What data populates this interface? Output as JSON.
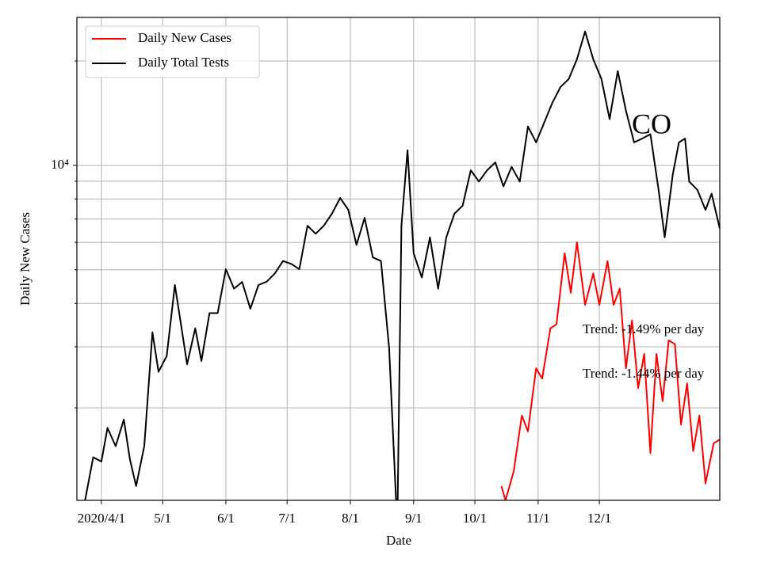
{
  "chart_data": {
    "type": "line",
    "xlabel": "Date",
    "ylabel": "Daily New Cases",
    "log_y": true,
    "grid": true,
    "legend": "upper left",
    "xlim": [
      "2020-03-20",
      "2021-01-29"
    ],
    "ylim": [
      1082,
      26700
    ],
    "xticks": [
      {
        "value": "2020-04-01",
        "label": "2020/4/1"
      },
      {
        "value": "2020-05-01",
        "label": "5/1"
      },
      {
        "value": "2020-06-01",
        "label": "6/1"
      },
      {
        "value": "2020-07-01",
        "label": "7/1"
      },
      {
        "value": "2020-08-01",
        "label": "8/1"
      },
      {
        "value": "2020-09-01",
        "label": "9/1"
      },
      {
        "value": "2020-10-01",
        "label": "10/1"
      },
      {
        "value": "2020-11-01",
        "label": "11/1"
      },
      {
        "value": "2020-12-01",
        "label": "12/1"
      }
    ],
    "yticks": [
      {
        "value": 10000,
        "label": "10⁴"
      }
    ],
    "yminor": [
      2000,
      3000,
      4000,
      5000,
      6000,
      7000,
      8000,
      9000,
      20000
    ],
    "annotations": [
      {
        "text": "CO"
      },
      {
        "text": "Trend: -1.49% per day"
      },
      {
        "text": "Trend: -1.44% per day"
      }
    ],
    "series": [
      {
        "name": "Daily New Cases",
        "color": "#ff0000",
        "x": [
          "2020-10-14",
          "2020-10-16",
          "2020-10-20",
          "2020-10-24",
          "2020-10-27",
          "2020-10-31",
          "2020-11-03",
          "2020-11-07",
          "2020-11-10",
          "2020-11-14",
          "2020-11-17",
          "2020-11-20",
          "2020-11-24",
          "2020-11-28",
          "2020-12-01",
          "2020-12-05",
          "2020-12-08",
          "2020-12-11",
          "2020-12-14",
          "2020-12-17",
          "2020-12-20",
          "2020-12-23",
          "2020-12-26",
          "2020-12-29",
          "2021-01-01",
          "2021-01-04",
          "2021-01-07",
          "2021-01-10",
          "2021-01-13",
          "2021-01-16",
          "2021-01-19",
          "2021-01-22",
          "2021-01-26",
          "2021-01-29"
        ],
        "values": [
          1190,
          1082,
          1310,
          1900,
          1710,
          2600,
          2430,
          3390,
          3480,
          5580,
          4290,
          6000,
          3960,
          4880,
          3960,
          5300,
          3960,
          4410,
          2600,
          3570,
          2280,
          2860,
          1480,
          2860,
          2090,
          3130,
          3050,
          1790,
          2350,
          1500,
          1900,
          1210,
          1580,
          1620
        ]
      },
      {
        "name": "Daily Total Tests",
        "color": "#000000",
        "x": [
          "2020-03-24",
          "2020-03-28",
          "2020-04-01",
          "2020-04-04",
          "2020-04-08",
          "2020-04-12",
          "2020-04-15",
          "2020-04-18",
          "2020-04-22",
          "2020-04-26",
          "2020-04-29",
          "2020-05-03",
          "2020-05-07",
          "2020-05-10",
          "2020-05-13",
          "2020-05-17",
          "2020-05-20",
          "2020-05-24",
          "2020-05-28",
          "2020-06-01",
          "2020-06-05",
          "2020-06-09",
          "2020-06-13",
          "2020-06-17",
          "2020-06-21",
          "2020-06-25",
          "2020-06-29",
          "2020-07-03",
          "2020-07-07",
          "2020-07-11",
          "2020-07-15",
          "2020-07-19",
          "2020-07-23",
          "2020-07-27",
          "2020-07-31",
          "2020-08-04",
          "2020-08-08",
          "2020-08-12",
          "2020-08-16",
          "2020-08-20",
          "2020-08-24",
          "2020-08-26",
          "2020-08-29",
          "2020-09-01",
          "2020-09-05",
          "2020-09-09",
          "2020-09-13",
          "2020-09-17",
          "2020-09-21",
          "2020-09-25",
          "2020-09-29",
          "2020-10-03",
          "2020-10-07",
          "2020-10-11",
          "2020-10-15",
          "2020-10-19",
          "2020-10-23",
          "2020-10-27",
          "2020-10-31",
          "2020-11-04",
          "2020-11-08",
          "2020-11-12",
          "2020-11-16",
          "2020-11-20",
          "2020-11-24",
          "2020-11-28",
          "2020-12-02",
          "2020-12-06",
          "2020-12-10",
          "2020-12-14",
          "2020-12-18",
          "2020-12-22",
          "2020-12-26",
          "2020-12-30",
          "2021-01-02",
          "2021-01-06",
          "2021-01-09",
          "2021-01-12",
          "2021-01-14",
          "2021-01-18",
          "2021-01-22",
          "2021-01-25",
          "2021-01-29"
        ],
        "values": [
          1082,
          1440,
          1400,
          1750,
          1550,
          1850,
          1420,
          1190,
          1550,
          3300,
          2540,
          2820,
          4520,
          3480,
          2670,
          3390,
          2730,
          3750,
          3750,
          5020,
          4410,
          4610,
          3860,
          4520,
          4620,
          4880,
          5300,
          5200,
          5020,
          6700,
          6350,
          6700,
          7260,
          8050,
          7440,
          5900,
          7060,
          5430,
          5300,
          2970,
          900,
          6700,
          11060,
          5580,
          4750,
          6200,
          4410,
          6200,
          7260,
          7650,
          9680,
          8980,
          9680,
          10200,
          8700,
          9900,
          8980,
          12940,
          11650,
          13300,
          15170,
          16840,
          17740,
          20220,
          24320,
          20220,
          17740,
          13600,
          18700,
          14380,
          11650,
          11950,
          12300,
          8500,
          6200,
          9440,
          11650,
          11950,
          8980,
          8500,
          7440,
          8290,
          6570
        ]
      }
    ]
  }
}
